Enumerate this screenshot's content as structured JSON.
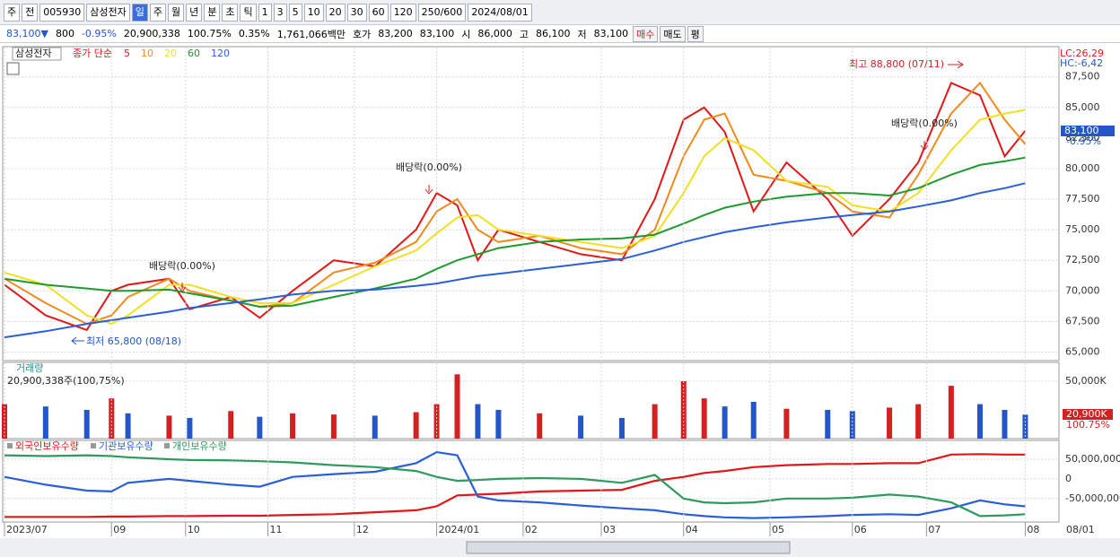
{
  "toolbar": [
    "주",
    "전",
    "005930",
    "삼성전자",
    "일",
    "주",
    "월",
    "년",
    "분",
    "초",
    "틱",
    "1",
    "3",
    "5",
    "10",
    "20",
    "30",
    "60",
    "120",
    "250/600",
    "2024/08/01"
  ],
  "info_bar": [
    "83,100▼",
    "800",
    "-0.95%",
    "20,900,338",
    "100.75%",
    "0.35%",
    "1,761,066백만",
    "호가",
    "83,200",
    "83,100",
    "시",
    "86,000",
    "고",
    "86,100",
    "저",
    "83,100",
    "매수",
    "매도",
    "평"
  ],
  "chart_data": [
    {
      "type": "line",
      "stock_label": "삼성전자",
      "legend_prefix": "종가 단순",
      "xlim": [
        0,
        249
      ],
      "ylim": [
        64300,
        89900
      ],
      "x": [
        0,
        10,
        20,
        26,
        30,
        40,
        45,
        55,
        62,
        70,
        80,
        90,
        100,
        105,
        110,
        115,
        120,
        130,
        140,
        150,
        158,
        165,
        170,
        175,
        182,
        190,
        200,
        206,
        215,
        222,
        230,
        237,
        243,
        248
      ],
      "series": [
        {
          "name": "5",
          "color": "#e01818",
          "values": [
            70500,
            68000,
            66800,
            70000,
            70500,
            71000,
            68500,
            69500,
            67800,
            70000,
            72500,
            72000,
            75000,
            78000,
            77000,
            72500,
            75000,
            74000,
            73000,
            72500,
            77500,
            84000,
            85000,
            83000,
            76500,
            80500,
            77500,
            74500,
            77500,
            80500,
            87000,
            86000,
            81000,
            83100
          ]
        },
        {
          "name": "10",
          "color": "#f08a1c",
          "values": [
            71000,
            69000,
            67300,
            68000,
            69500,
            71000,
            70000,
            69200,
            68700,
            69000,
            71500,
            72300,
            74000,
            76500,
            77500,
            75000,
            74000,
            74500,
            73500,
            73000,
            75000,
            81000,
            84000,
            84500,
            79500,
            79000,
            78000,
            76500,
            76000,
            79500,
            84500,
            87000,
            84000,
            82000
          ]
        },
        {
          "name": "20",
          "color": "#f0e020",
          "values": [
            71500,
            70500,
            68000,
            67300,
            68000,
            70500,
            70500,
            69500,
            69000,
            69000,
            70500,
            72000,
            73300,
            74700,
            76000,
            76200,
            75000,
            74500,
            74000,
            73500,
            74500,
            78000,
            81000,
            82500,
            81500,
            79000,
            78500,
            77000,
            76500,
            78000,
            81500,
            84000,
            84500,
            84800
          ]
        },
        {
          "name": "60",
          "color": "#1e9a2e",
          "values": [
            71000,
            70500,
            70200,
            70000,
            70000,
            70100,
            69800,
            69200,
            68700,
            68800,
            69500,
            70200,
            71000,
            71800,
            72500,
            73000,
            73500,
            74000,
            74200,
            74300,
            74600,
            75500,
            76200,
            76800,
            77300,
            77700,
            78000,
            78000,
            77800,
            78400,
            79500,
            80300,
            80600,
            80900
          ]
        },
        {
          "name": "120",
          "color": "#2a5fd8",
          "values": [
            66200,
            66700,
            67300,
            67600,
            67800,
            68300,
            68600,
            69000,
            69300,
            69700,
            70000,
            70100,
            70400,
            70600,
            70900,
            71200,
            71400,
            71800,
            72200,
            72600,
            73300,
            74000,
            74400,
            74800,
            75200,
            75600,
            76000,
            76200,
            76500,
            76900,
            77400,
            78000,
            78400,
            78800
          ]
        }
      ],
      "yticks": [
        {
          "value": 65000,
          "label": "65,000"
        },
        {
          "value": 67500,
          "label": "67,500"
        },
        {
          "value": 70000,
          "label": "70,000"
        },
        {
          "value": 72500,
          "label": "72,500"
        },
        {
          "value": 75000,
          "label": "75,000"
        },
        {
          "value": 77500,
          "label": "77,500"
        },
        {
          "value": 80000,
          "label": "80,000"
        },
        {
          "value": 82500,
          "label": "82,500"
        },
        {
          "value": 85000,
          "label": "85,000"
        },
        {
          "value": 87500,
          "label": "87,500"
        }
      ],
      "annotations": [
        "최고 88,800 (07/11)",
        "최저 65,800 (08/18)",
        "배당락(0.00%)",
        "배당락(0.00%)",
        "배당락(0.00%)"
      ],
      "lc_label": "LC:26,29",
      "hc_label": "HC:-6,42",
      "current_label": "83,100",
      "current_change": "-0.95%"
    },
    {
      "type": "bar",
      "title": "거래량",
      "subtitle": "20,900,338주(100,75%)",
      "xlim": [
        0,
        249
      ],
      "ylim": [
        0,
        66400
      ],
      "x": [
        0,
        10,
        20,
        26,
        30,
        40,
        45,
        55,
        62,
        70,
        80,
        90,
        100,
        105,
        110,
        115,
        120,
        130,
        140,
        150,
        158,
        165,
        170,
        175,
        182,
        190,
        200,
        206,
        215,
        222,
        230,
        237,
        243,
        248
      ],
      "values": [
        30000,
        28000,
        25000,
        35000,
        22000,
        20000,
        18000,
        24000,
        19000,
        22000,
        21000,
        20000,
        23000,
        30000,
        56000,
        30000,
        25000,
        22000,
        20000,
        18000,
        30000,
        50000,
        35000,
        28000,
        32000,
        26000,
        25000,
        24000,
        27000,
        30000,
        46000,
        30000,
        25000,
        20900
      ],
      "colors": [
        "#d42020",
        "#2456c8",
        "#2456c8",
        "#d42020",
        "#2456c8",
        "#d42020",
        "#2456c8",
        "#d42020",
        "#2456c8",
        "#d42020",
        "#d42020",
        "#2456c8",
        "#d42020",
        "#d42020",
        "#d42020",
        "#2456c8",
        "#2456c8",
        "#d42020",
        "#2456c8",
        "#2456c8",
        "#d42020",
        "#d42020",
        "#d42020",
        "#2456c8",
        "#2456c8",
        "#d42020",
        "#2456c8",
        "#2456c8",
        "#d42020",
        "#d42020",
        "#d42020",
        "#2456c8",
        "#2456c8",
        "#2456c8"
      ],
      "yticks": [
        {
          "value": 50000,
          "label": "50,000K"
        }
      ],
      "current_label": "20,900K",
      "current_change": "100.75%"
    },
    {
      "type": "line",
      "xlim": [
        0,
        249
      ],
      "ylim": [
        -110000000,
        98000000
      ],
      "x": [
        0,
        10,
        20,
        26,
        30,
        40,
        45,
        55,
        62,
        70,
        80,
        90,
        100,
        105,
        110,
        115,
        120,
        130,
        140,
        150,
        158,
        165,
        170,
        175,
        182,
        190,
        200,
        206,
        215,
        222,
        230,
        237,
        243,
        248
      ],
      "series": [
        {
          "name": "외국인보유수량",
          "color": "#e01818",
          "values": [
            -97000000,
            -97000000,
            -97000000,
            -96000000,
            -96000000,
            -95000000,
            -95000000,
            -94000000,
            -94000000,
            -92000000,
            -90000000,
            -85000000,
            -80000000,
            -70000000,
            -42000000,
            -40000000,
            -38000000,
            -32000000,
            -30000000,
            -28000000,
            -5000000,
            5000000,
            15000000,
            20000000,
            30000000,
            35000000,
            38000000,
            38000000,
            40000000,
            40000000,
            62000000,
            63000000,
            62000000,
            62000000
          ]
        },
        {
          "name": "기관보유수량",
          "color": "#2a5fd8",
          "values": [
            5000000,
            -15000000,
            -30000000,
            -32000000,
            -10000000,
            0,
            -5000000,
            -15000000,
            -20000000,
            5000000,
            12000000,
            18000000,
            40000000,
            68000000,
            60000000,
            -45000000,
            -55000000,
            -60000000,
            -68000000,
            -75000000,
            -80000000,
            -90000000,
            -95000000,
            -98000000,
            -100000000,
            -98000000,
            -95000000,
            -92000000,
            -90000000,
            -92000000,
            -75000000,
            -55000000,
            -65000000,
            -70000000
          ]
        },
        {
          "name": "개인보유수량",
          "color": "#2e9a5e",
          "values": [
            60000000,
            58000000,
            60000000,
            58000000,
            55000000,
            50000000,
            48000000,
            47000000,
            45000000,
            42000000,
            35000000,
            30000000,
            20000000,
            5000000,
            -5000000,
            -3000000,
            0,
            2000000,
            0,
            -10000000,
            10000000,
            -50000000,
            -60000000,
            -62000000,
            -60000000,
            -50000000,
            -50000000,
            -48000000,
            -40000000,
            -45000000,
            -60000000,
            -95000000,
            -93000000,
            -90000000
          ]
        }
      ],
      "yticks": [
        {
          "value": 50000000,
          "label": "50,000,000"
        },
        0,
        {
          "value": -50000000,
          "label": "-50,000,000"
        }
      ],
      "xticks": [
        {
          "value": 0,
          "label": "2023/07"
        },
        {
          "value": 26,
          "label": "09"
        },
        {
          "value": 44,
          "label": "10"
        },
        {
          "value": 64,
          "label": "11"
        },
        {
          "value": 85,
          "label": "12"
        },
        {
          "value": 105,
          "label": "2024/01"
        },
        {
          "value": 126,
          "label": "02"
        },
        {
          "value": 145,
          "label": "03"
        },
        {
          "value": 165,
          "label": "04"
        },
        {
          "value": 186,
          "label": "05"
        },
        {
          "value": 206,
          "label": "06"
        },
        {
          "value": 224,
          "label": "07"
        },
        {
          "value": 248,
          "label": "08"
        }
      ],
      "date_label": "08/01"
    }
  ]
}
